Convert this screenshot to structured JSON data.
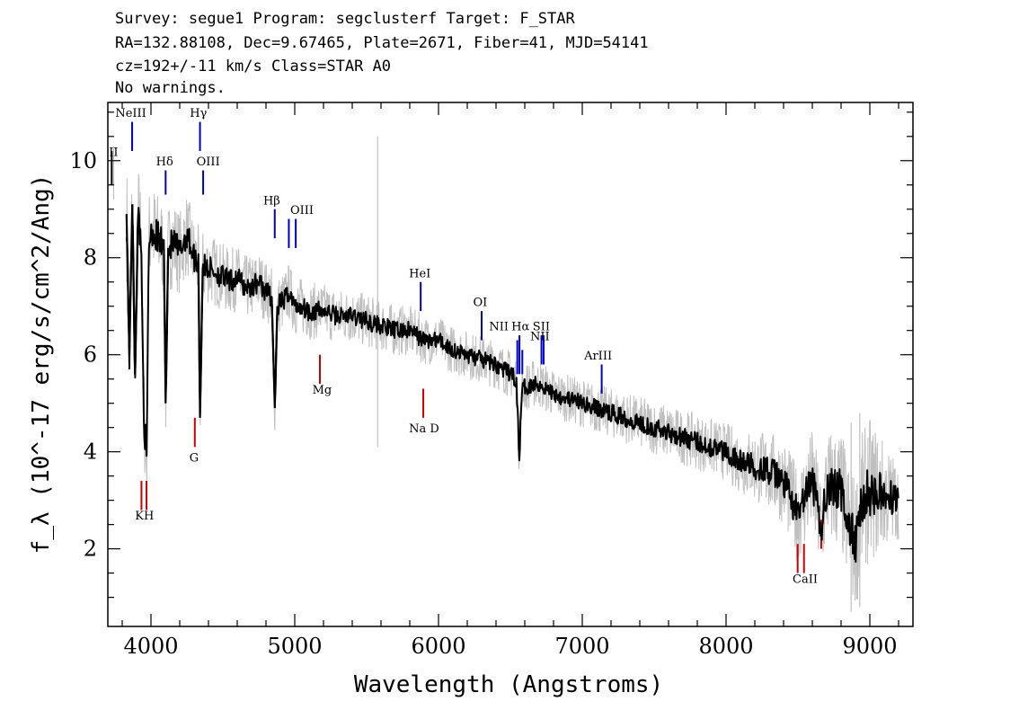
{
  "header": {
    "line1": "Survey: segue1 Program: segclusterf Target: F_STAR",
    "line2": "RA=132.88108, Dec=9.67465, Plate=2671, Fiber=41, MJD=54141",
    "line3": "cz=192+/-11 km/s Class=STAR A0",
    "line4": "No warnings."
  },
  "chart_data": {
    "type": "line",
    "xlabel": "Wavelength (Angstroms)",
    "ylabel": "f_λ (10^-17 erg/s/cm^2/Ang)",
    "xlim": [
      3700,
      9300
    ],
    "ylim": [
      0.4,
      11.2
    ],
    "xticks": [
      4000,
      5000,
      6000,
      7000,
      8000,
      9000
    ],
    "yticks": [
      2,
      4,
      6,
      8,
      10
    ],
    "series": [
      {
        "role": "smoothed flux",
        "color": "#000000",
        "points": [
          [
            3830,
            8.9
          ],
          [
            3850,
            6.0
          ],
          [
            3870,
            9.1
          ],
          [
            3889,
            5.6
          ],
          [
            3910,
            8.8
          ],
          [
            3930,
            8.5
          ],
          [
            3950,
            4.9
          ],
          [
            3970,
            3.7
          ],
          [
            3985,
            8.3
          ],
          [
            4000,
            8.6
          ],
          [
            4050,
            8.4
          ],
          [
            4090,
            8.2
          ],
          [
            4102,
            5.0
          ],
          [
            4120,
            8.2
          ],
          [
            4160,
            8.3
          ],
          [
            4200,
            8.1
          ],
          [
            4250,
            8.5
          ],
          [
            4300,
            8.0
          ],
          [
            4330,
            7.9
          ],
          [
            4341,
            4.7
          ],
          [
            4360,
            7.8
          ],
          [
            4400,
            7.8
          ],
          [
            4450,
            7.7
          ],
          [
            4500,
            7.6
          ],
          [
            4550,
            7.5
          ],
          [
            4600,
            7.6
          ],
          [
            4650,
            7.4
          ],
          [
            4700,
            7.4
          ],
          [
            4750,
            7.5
          ],
          [
            4800,
            7.3
          ],
          [
            4840,
            7.2
          ],
          [
            4861,
            4.9
          ],
          [
            4880,
            7.0
          ],
          [
            4920,
            7.1
          ],
          [
            4960,
            7.3
          ],
          [
            5000,
            7.0
          ],
          [
            5050,
            7.0
          ],
          [
            5100,
            6.9
          ],
          [
            5200,
            6.9
          ],
          [
            5300,
            6.8
          ],
          [
            5400,
            6.8
          ],
          [
            5500,
            6.7
          ],
          [
            5600,
            6.6
          ],
          [
            5700,
            6.5
          ],
          [
            5800,
            6.5
          ],
          [
            5900,
            6.3
          ],
          [
            6000,
            6.3
          ],
          [
            6100,
            6.1
          ],
          [
            6200,
            6.0
          ],
          [
            6300,
            5.9
          ],
          [
            6400,
            5.8
          ],
          [
            6500,
            5.6
          ],
          [
            6540,
            5.5
          ],
          [
            6563,
            3.9
          ],
          [
            6580,
            5.3
          ],
          [
            6650,
            5.4
          ],
          [
            6700,
            5.4
          ],
          [
            6800,
            5.2
          ],
          [
            6900,
            5.1
          ],
          [
            7000,
            5.0
          ],
          [
            7100,
            4.9
          ],
          [
            7200,
            4.8
          ],
          [
            7300,
            4.7
          ],
          [
            7400,
            4.6
          ],
          [
            7500,
            4.5
          ],
          [
            7600,
            4.4
          ],
          [
            7700,
            4.3
          ],
          [
            7800,
            4.2
          ],
          [
            7900,
            4.1
          ],
          [
            8000,
            4.0
          ],
          [
            8100,
            3.8
          ],
          [
            8200,
            3.7
          ],
          [
            8300,
            3.6
          ],
          [
            8400,
            3.4
          ],
          [
            8498,
            2.7
          ],
          [
            8542,
            3.0
          ],
          [
            8600,
            3.4
          ],
          [
            8662,
            2.4
          ],
          [
            8700,
            3.3
          ],
          [
            8800,
            3.2
          ],
          [
            8850,
            2.5
          ],
          [
            8900,
            2.1
          ],
          [
            8950,
            3.0
          ],
          [
            9000,
            3.2
          ],
          [
            9100,
            3.1
          ],
          [
            9200,
            3.0
          ]
        ]
      },
      {
        "role": "flux uncertainty band",
        "color": "#bfbfbf",
        "spread": [
          [
            3830,
            1.4
          ],
          [
            4000,
            1.0
          ],
          [
            4500,
            0.7
          ],
          [
            5000,
            0.6
          ],
          [
            6000,
            0.5
          ],
          [
            7000,
            0.5
          ],
          [
            8000,
            0.6
          ],
          [
            8400,
            0.9
          ],
          [
            8700,
            1.2
          ],
          [
            9000,
            1.5
          ],
          [
            9200,
            0.8
          ]
        ],
        "spikes": [
          [
            5577,
            4.1,
            10.5
          ],
          [
            8870,
            0.7,
            4.6
          ],
          [
            8930,
            0.8,
            4.8
          ],
          [
            3740,
            9.2,
            10.3
          ]
        ]
      }
    ],
    "emission_lines": [
      {
        "label": "OII",
        "x": 3727,
        "y1": 9.5,
        "y2": 10.2,
        "color": "#000000"
      },
      {
        "label": "NeIII",
        "x": 3869,
        "y1": 10.2,
        "y2": 10.8,
        "color": "#0000cc"
      },
      {
        "label": "Hδ",
        "x": 4102,
        "y1": 9.3,
        "y2": 9.8,
        "color": "#0000cc"
      },
      {
        "label": "Hγ",
        "x": 4341,
        "y1": 10.2,
        "y2": 10.8,
        "color": "#0000cc"
      },
      {
        "label": "OIII",
        "x": 4363,
        "y1": 9.3,
        "y2": 9.8,
        "color": "#0000cc"
      },
      {
        "label": "Hβ",
        "x": 4861,
        "y1": 8.4,
        "y2": 9.0,
        "color": "#0000cc"
      },
      {
        "label": "OIII",
        "x": 4959,
        "y1": 8.2,
        "y2": 8.8,
        "color": "#0000cc"
      },
      {
        "label": "OIII",
        "x": 5007,
        "y1": 8.2,
        "y2": 8.8,
        "color": "#0000cc"
      },
      {
        "label": "HeI",
        "x": 5876,
        "y1": 6.9,
        "y2": 7.5,
        "color": "#0000cc"
      },
      {
        "label": "OI",
        "x": 6300,
        "y1": 6.3,
        "y2": 6.9,
        "color": "#0000cc"
      },
      {
        "label": "NII",
        "x": 6548,
        "y1": 5.6,
        "y2": 6.3,
        "color": "#0000cc"
      },
      {
        "label": "Hα",
        "x": 6563,
        "y1": 5.6,
        "y2": 6.4,
        "color": "#0000cc"
      },
      {
        "label": "NII",
        "x": 6583,
        "y1": 5.6,
        "y2": 6.1,
        "color": "#0000cc"
      },
      {
        "label": "SII",
        "x": 6716,
        "y1": 5.8,
        "y2": 6.4,
        "color": "#0000cc"
      },
      {
        "label": "SII",
        "x": 6731,
        "y1": 5.8,
        "y2": 6.4,
        "color": "#0000cc"
      },
      {
        "label": "ArIII",
        "x": 7135,
        "y1": 5.2,
        "y2": 5.8,
        "color": "#0000cc"
      }
    ],
    "absorption_lines": [
      {
        "label": "K",
        "x": 3934,
        "y1": 2.8,
        "y2": 3.4,
        "color": "#cc0000"
      },
      {
        "label": "H",
        "x": 3969,
        "y1": 2.8,
        "y2": 3.4,
        "color": "#cc0000"
      },
      {
        "label": "G",
        "x": 4305,
        "y1": 4.1,
        "y2": 4.7,
        "color": "#cc0000"
      },
      {
        "label": "Mg",
        "x": 5175,
        "y1": 5.4,
        "y2": 6.0,
        "color": "#cc0000"
      },
      {
        "label": "Na",
        "x": 5894,
        "y1": 4.7,
        "y2": 5.3,
        "color": "#cc0000"
      },
      {
        "label": "CaII",
        "x": 8498,
        "y1": 1.5,
        "y2": 2.1,
        "color": "#cc0000"
      },
      {
        "label": "CaII",
        "x": 8542,
        "y1": 1.5,
        "y2": 2.1,
        "color": "#cc0000"
      },
      {
        "label": "CaII",
        "x": 8662,
        "y1": 2.0,
        "y2": 2.6,
        "color": "#cc0000"
      }
    ],
    "line_labels": [
      {
        "text": "II",
        "x": 3740,
        "y": 10.1
      },
      {
        "text": "NeIII",
        "x": 3860,
        "y": 10.9
      },
      {
        "text": "Hδ",
        "x": 4095,
        "y": 9.9
      },
      {
        "text": "Hγ",
        "x": 4330,
        "y": 10.9
      },
      {
        "text": "OIII",
        "x": 4398,
        "y": 9.9
      },
      {
        "text": "Hβ",
        "x": 4840,
        "y": 9.1
      },
      {
        "text": "OIII",
        "x": 5050,
        "y": 8.9
      },
      {
        "text": "HeI",
        "x": 5870,
        "y": 7.6
      },
      {
        "text": "OI",
        "x": 6290,
        "y": 7.0
      },
      {
        "text": "NII",
        "x": 6420,
        "y": 6.5
      },
      {
        "text": "Hα",
        "x": 6570,
        "y": 6.5
      },
      {
        "text": "SII",
        "x": 6715,
        "y": 6.5
      },
      {
        "text": "NII",
        "x": 6705,
        "y": 6.3
      },
      {
        "text": "ArIII",
        "x": 7110,
        "y": 5.9
      },
      {
        "text": "KH",
        "x": 3955,
        "y": 2.6
      },
      {
        "text": "G",
        "x": 4300,
        "y": 3.8
      },
      {
        "text": "Mg",
        "x": 5190,
        "y": 5.2
      },
      {
        "text": "Na D",
        "x": 5900,
        "y": 4.4
      },
      {
        "text": "CaII",
        "x": 8550,
        "y": 1.3
      }
    ]
  }
}
